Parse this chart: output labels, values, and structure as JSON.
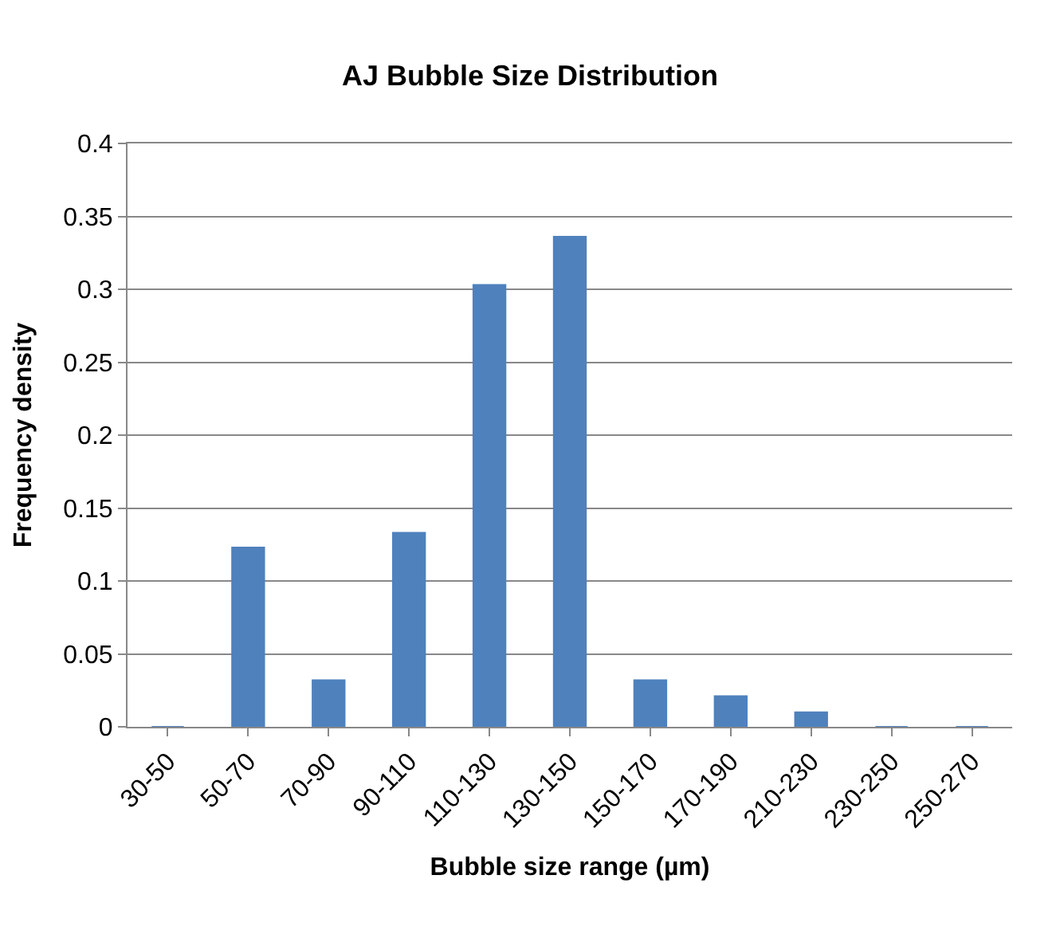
{
  "chart_data": {
    "type": "bar",
    "title": "AJ Bubble Size Distribution",
    "xlabel": "Bubble size range (µm)",
    "ylabel": "Frequency density",
    "categories": [
      "30-50",
      "50-70",
      "70-90",
      "90-110",
      "110-130",
      "130-150",
      "150-170",
      "170-190",
      "210-230",
      "230-250",
      "250-270"
    ],
    "values": [
      0,
      0.123,
      0.032,
      0.133,
      0.303,
      0.336,
      0.032,
      0.021,
      0.01,
      0,
      0
    ],
    "color": "#4f81bd",
    "ylim": [
      0,
      0.4
    ],
    "yticks": [
      0,
      0.05,
      0.1,
      0.15,
      0.2,
      0.25,
      0.3,
      0.35,
      0.4
    ],
    "grid": "y"
  }
}
